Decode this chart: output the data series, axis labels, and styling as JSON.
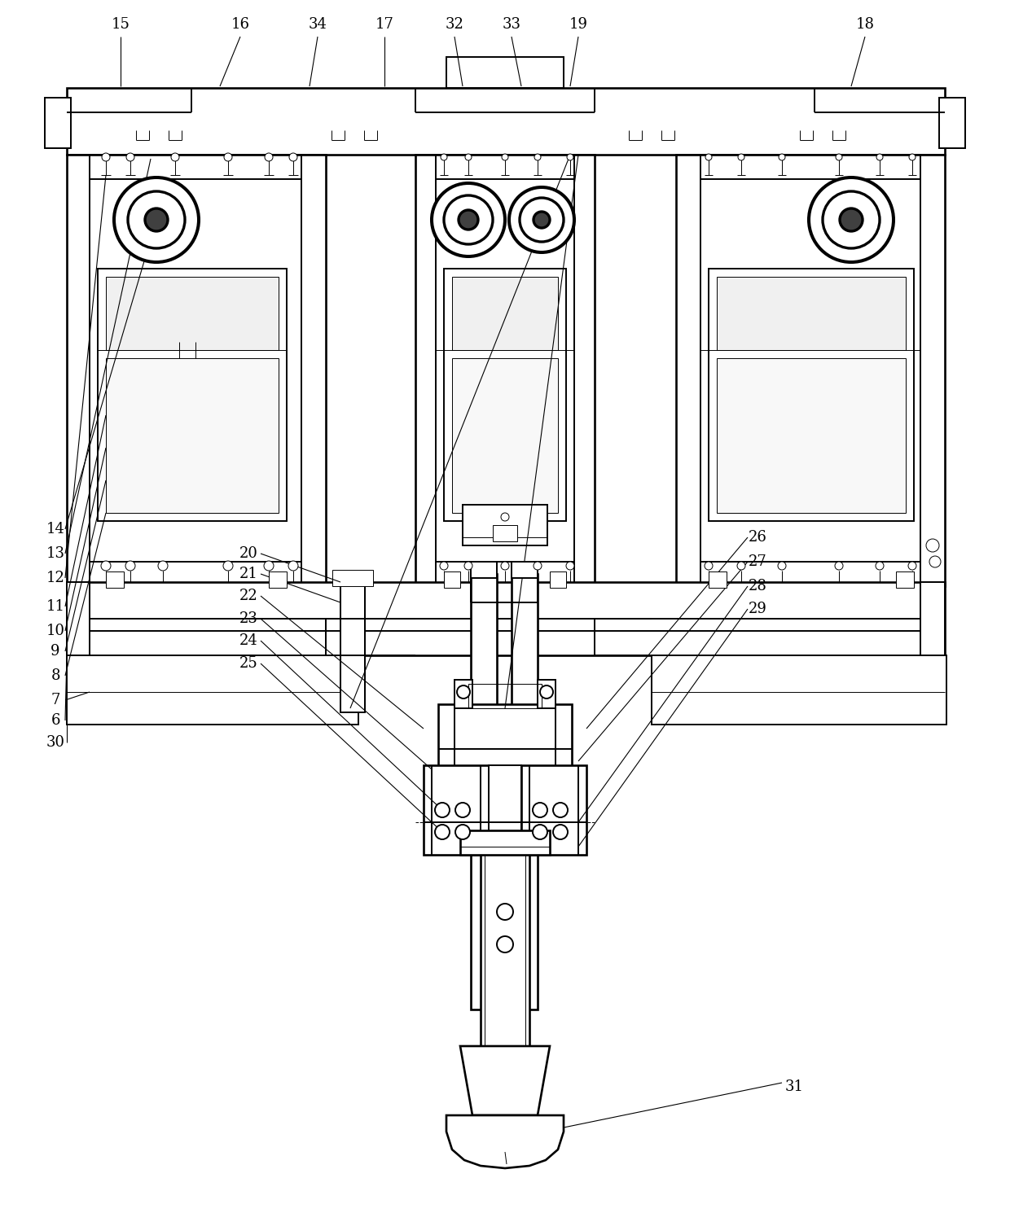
{
  "figure_width": 12.4,
  "figure_height": 14.9,
  "bg_color": "#ffffff",
  "lc": "#000000",
  "lw": 1.4,
  "tlw": 0.7,
  "fs": 13
}
